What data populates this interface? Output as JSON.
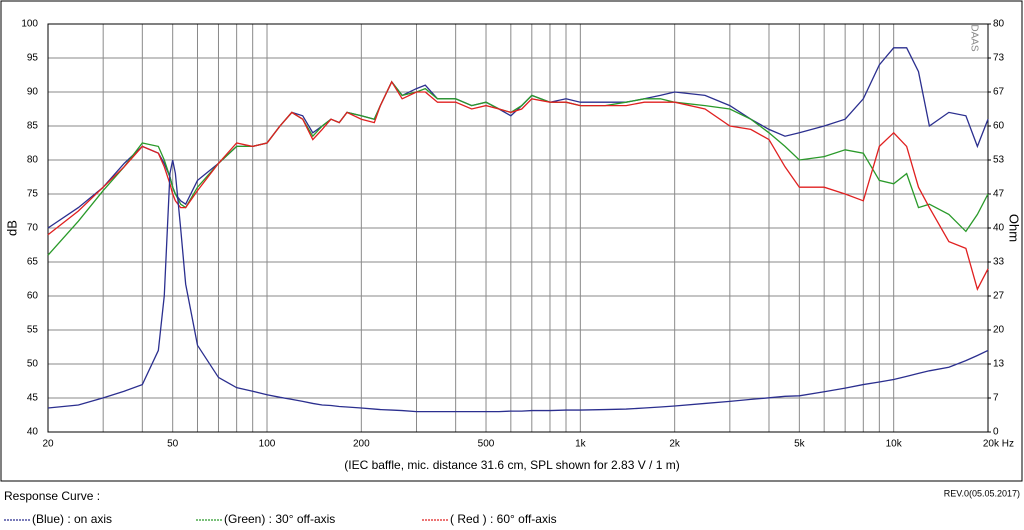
{
  "chart_data": {
    "type": "line",
    "y_label": "dB",
    "y2_label": "Ohm",
    "caption": "(IEC baffle, mic. distance 31.6 cm, SPL shown for 2.83 V / 1 m)",
    "legend_title": "Response Curve :",
    "revision": "REV.0(05.05.2017)",
    "watermark": "DAAS",
    "xscale": "log",
    "grid": true,
    "xlim": [
      20,
      20000
    ],
    "xticks": [
      20,
      50,
      100,
      200,
      500,
      {
        "value": 1000,
        "label": "1k"
      },
      {
        "value": 2000,
        "label": "2k"
      },
      {
        "value": 5000,
        "label": "5k"
      },
      {
        "value": 10000,
        "label": "10k"
      },
      {
        "value": 20000,
        "label": "20k Hz"
      }
    ],
    "xminorticks": [
      30,
      40,
      60,
      70,
      80,
      90,
      300,
      400,
      600,
      700,
      800,
      900,
      3000,
      4000,
      6000,
      7000,
      8000,
      9000
    ],
    "ylim": [
      40,
      100
    ],
    "yticks": [
      40,
      45,
      50,
      55,
      60,
      65,
      70,
      75,
      80,
      85,
      90,
      95,
      100
    ],
    "y2lim": [
      0,
      80
    ],
    "y2ticks": [
      0,
      {
        "value": 6.667,
        "label": "7"
      },
      {
        "value": 13.333,
        "label": "13"
      },
      20,
      {
        "value": 26.667,
        "label": "27"
      },
      {
        "value": 33.333,
        "label": "33"
      },
      40,
      {
        "value": 46.667,
        "label": "47"
      },
      {
        "value": 53.333,
        "label": "53"
      },
      60,
      {
        "value": 66.667,
        "label": "67"
      },
      {
        "value": 73.333,
        "label": "73"
      },
      80
    ],
    "x": [
      20,
      25,
      30,
      35,
      40,
      45,
      47,
      49,
      50,
      51,
      53,
      55,
      60,
      70,
      80,
      90,
      100,
      110,
      120,
      130,
      140,
      150,
      160,
      170,
      180,
      200,
      220,
      230,
      250,
      270,
      300,
      320,
      350,
      400,
      450,
      500,
      550,
      600,
      650,
      700,
      800,
      900,
      1000,
      1200,
      1400,
      1600,
      1800,
      2000,
      2500,
      3000,
      3500,
      4000,
      4500,
      5000,
      6000,
      7000,
      8000,
      9000,
      10000,
      11000,
      12000,
      13000,
      15000,
      17000,
      18500,
      20000
    ],
    "series": [
      {
        "name": "(Blue) : on axis",
        "color": "#2b2f8f",
        "values": [
          70,
          73,
          76,
          79.5,
          82,
          81,
          79.5,
          77.5,
          76,
          75,
          74,
          73.5,
          77,
          79.5,
          82,
          82,
          82.5,
          85,
          87,
          86.5,
          84,
          85,
          86,
          85.5,
          87,
          86.5,
          86,
          88,
          91.5,
          89.5,
          90.5,
          91,
          89,
          89,
          88,
          88.5,
          87.5,
          86.5,
          88,
          89.5,
          88.5,
          89,
          88.5,
          88.5,
          88.5,
          89,
          89.5,
          90,
          89.5,
          88,
          86,
          84.5,
          83.5,
          84,
          85,
          86,
          89,
          94,
          96.5,
          96.5,
          93,
          85,
          87,
          86.5,
          82,
          86
        ]
      },
      {
        "name": "(Green) : 30° off-axis",
        "color": "#2a9a2a",
        "values": [
          66,
          71,
          75.5,
          79,
          82.5,
          82,
          80,
          77.5,
          76,
          75,
          73.5,
          73,
          76,
          79.5,
          82,
          82,
          82.5,
          85,
          87,
          86,
          83.5,
          85,
          86,
          85.5,
          87,
          86.5,
          86,
          88,
          91.5,
          89.5,
          90,
          90.5,
          89,
          89,
          88,
          88.5,
          87.5,
          87,
          88,
          89.5,
          88.5,
          88.5,
          88,
          88,
          88.5,
          89,
          89,
          88.5,
          88,
          87.5,
          86,
          84,
          82,
          80,
          80.5,
          81.5,
          81,
          77,
          76.5,
          78,
          73,
          73.5,
          72,
          69.5,
          72,
          75
        ]
      },
      {
        "name": "( Red ) : 60° off-axis",
        "color": "#e02020",
        "values": [
          69,
          72.5,
          76,
          79,
          82,
          81,
          79,
          76.5,
          75,
          74,
          73,
          73,
          75.5,
          79.5,
          82.5,
          82,
          82.5,
          85,
          87,
          86,
          83,
          84.5,
          86,
          85.5,
          87,
          86,
          85.5,
          88,
          91.5,
          89,
          90,
          90,
          88.5,
          88.5,
          87.5,
          88,
          87.5,
          87,
          87.5,
          89,
          88.5,
          88.5,
          88,
          88,
          88,
          88.5,
          88.5,
          88.5,
          87.5,
          85,
          84.5,
          83,
          79,
          76,
          76,
          75,
          74,
          82,
          84,
          82,
          76,
          73,
          68,
          67,
          61,
          64
        ]
      },
      {
        "color": "#2b2f8f",
        "axis": "y2",
        "values": [
          4.7,
          5.3,
          6.7,
          8,
          9.3,
          16,
          26.7,
          50.7,
          53.3,
          50.7,
          40,
          29,
          17,
          10.7,
          8.7,
          8,
          7.3,
          6.8,
          6.4,
          6,
          5.6,
          5.3,
          5.2,
          5,
          4.9,
          4.7,
          4.5,
          4.4,
          4.3,
          4.2,
          4,
          4,
          4,
          4,
          4,
          4,
          4,
          4.1,
          4.1,
          4.2,
          4.2,
          4.3,
          4.3,
          4.4,
          4.5,
          4.7,
          4.9,
          5.1,
          5.6,
          6,
          6.4,
          6.7,
          7,
          7.1,
          7.9,
          8.6,
          9.3,
          9.8,
          10.3,
          10.9,
          11.5,
          12,
          12.7,
          14,
          15,
          16
        ]
      }
    ]
  }
}
